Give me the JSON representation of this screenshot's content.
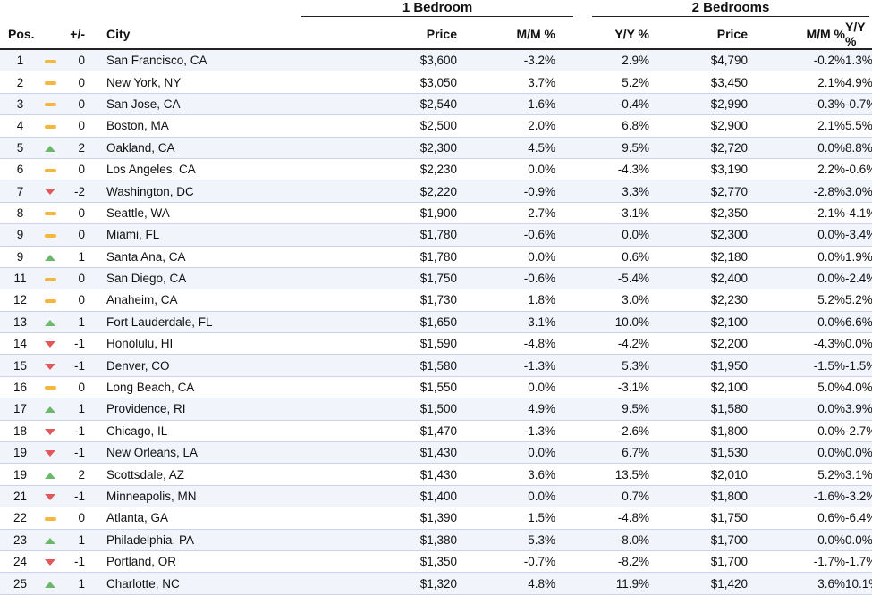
{
  "groups": {
    "one_bedroom": "1 Bedroom",
    "two_bedrooms": "2 Bedrooms"
  },
  "headers": {
    "pos": "Pos.",
    "change": "+/-",
    "city": "City",
    "price1": "Price",
    "mm1": "M/M %",
    "yy1": "Y/Y %",
    "price2": "Price",
    "mm2": "M/M %",
    "yy2": "Y/Y %"
  },
  "colors": {
    "up": "#6cb86a",
    "down": "#e0585a",
    "same": "#f4b63c"
  },
  "rows": [
    {
      "pos": "1",
      "trend": "same",
      "chg": "0",
      "city": "San Francisco, CA",
      "p1": "$3,600",
      "mm1": "-3.2%",
      "yy1": "2.9%",
      "p2": "$4,790",
      "mm2": "-0.2%",
      "yy2": "1.3%"
    },
    {
      "pos": "2",
      "trend": "same",
      "chg": "0",
      "city": "New York, NY",
      "p1": "$3,050",
      "mm1": "3.7%",
      "yy1": "5.2%",
      "p2": "$3,450",
      "mm2": "2.1%",
      "yy2": "4.9%"
    },
    {
      "pos": "3",
      "trend": "same",
      "chg": "0",
      "city": "San Jose, CA",
      "p1": "$2,540",
      "mm1": "1.6%",
      "yy1": "-0.4%",
      "p2": "$2,990",
      "mm2": "-0.3%",
      "yy2": "-0.7%"
    },
    {
      "pos": "4",
      "trend": "same",
      "chg": "0",
      "city": "Boston, MA",
      "p1": "$2,500",
      "mm1": "2.0%",
      "yy1": "6.8%",
      "p2": "$2,900",
      "mm2": "2.1%",
      "yy2": "5.5%"
    },
    {
      "pos": "5",
      "trend": "up",
      "chg": "2",
      "city": "Oakland, CA",
      "p1": "$2,300",
      "mm1": "4.5%",
      "yy1": "9.5%",
      "p2": "$2,720",
      "mm2": "0.0%",
      "yy2": "8.8%"
    },
    {
      "pos": "6",
      "trend": "same",
      "chg": "0",
      "city": "Los Angeles, CA",
      "p1": "$2,230",
      "mm1": "0.0%",
      "yy1": "-4.3%",
      "p2": "$3,190",
      "mm2": "2.2%",
      "yy2": "-0.6%"
    },
    {
      "pos": "7",
      "trend": "down",
      "chg": "-2",
      "city": "Washington, DC",
      "p1": "$2,220",
      "mm1": "-0.9%",
      "yy1": "3.3%",
      "p2": "$2,770",
      "mm2": "-2.8%",
      "yy2": "3.0%"
    },
    {
      "pos": "8",
      "trend": "same",
      "chg": "0",
      "city": "Seattle, WA",
      "p1": "$1,900",
      "mm1": "2.7%",
      "yy1": "-3.1%",
      "p2": "$2,350",
      "mm2": "-2.1%",
      "yy2": "-4.1%"
    },
    {
      "pos": "9",
      "trend": "same",
      "chg": "0",
      "city": "Miami, FL",
      "p1": "$1,780",
      "mm1": "-0.6%",
      "yy1": "0.0%",
      "p2": "$2,300",
      "mm2": "0.0%",
      "yy2": "-3.4%"
    },
    {
      "pos": "9",
      "trend": "up",
      "chg": "1",
      "city": "Santa Ana, CA",
      "p1": "$1,780",
      "mm1": "0.0%",
      "yy1": "0.6%",
      "p2": "$2,180",
      "mm2": "0.0%",
      "yy2": "1.9%"
    },
    {
      "pos": "11",
      "trend": "same",
      "chg": "0",
      "city": "San Diego, CA",
      "p1": "$1,750",
      "mm1": "-0.6%",
      "yy1": "-5.4%",
      "p2": "$2,400",
      "mm2": "0.0%",
      "yy2": "-2.4%"
    },
    {
      "pos": "12",
      "trend": "same",
      "chg": "0",
      "city": "Anaheim, CA",
      "p1": "$1,730",
      "mm1": "1.8%",
      "yy1": "3.0%",
      "p2": "$2,230",
      "mm2": "5.2%",
      "yy2": "5.2%"
    },
    {
      "pos": "13",
      "trend": "up",
      "chg": "1",
      "city": "Fort Lauderdale, FL",
      "p1": "$1,650",
      "mm1": "3.1%",
      "yy1": "10.0%",
      "p2": "$2,100",
      "mm2": "0.0%",
      "yy2": "6.6%"
    },
    {
      "pos": "14",
      "trend": "down",
      "chg": "-1",
      "city": "Honolulu, HI",
      "p1": "$1,590",
      "mm1": "-4.8%",
      "yy1": "-4.2%",
      "p2": "$2,200",
      "mm2": "-4.3%",
      "yy2": "0.0%"
    },
    {
      "pos": "15",
      "trend": "down",
      "chg": "-1",
      "city": "Denver, CO",
      "p1": "$1,580",
      "mm1": "-1.3%",
      "yy1": "5.3%",
      "p2": "$1,950",
      "mm2": "-1.5%",
      "yy2": "-1.5%"
    },
    {
      "pos": "16",
      "trend": "same",
      "chg": "0",
      "city": "Long Beach, CA",
      "p1": "$1,550",
      "mm1": "0.0%",
      "yy1": "-3.1%",
      "p2": "$2,100",
      "mm2": "5.0%",
      "yy2": "4.0%"
    },
    {
      "pos": "17",
      "trend": "up",
      "chg": "1",
      "city": "Providence, RI",
      "p1": "$1,500",
      "mm1": "4.9%",
      "yy1": "9.5%",
      "p2": "$1,580",
      "mm2": "0.0%",
      "yy2": "3.9%"
    },
    {
      "pos": "18",
      "trend": "down",
      "chg": "-1",
      "city": "Chicago, IL",
      "p1": "$1,470",
      "mm1": "-1.3%",
      "yy1": "-2.6%",
      "p2": "$1,800",
      "mm2": "0.0%",
      "yy2": "-2.7%"
    },
    {
      "pos": "19",
      "trend": "down",
      "chg": "-1",
      "city": "New Orleans, LA",
      "p1": "$1,430",
      "mm1": "0.0%",
      "yy1": "6.7%",
      "p2": "$1,530",
      "mm2": "0.0%",
      "yy2": "0.0%"
    },
    {
      "pos": "19",
      "trend": "up",
      "chg": "2",
      "city": "Scottsdale, AZ",
      "p1": "$1,430",
      "mm1": "3.6%",
      "yy1": "13.5%",
      "p2": "$2,010",
      "mm2": "5.2%",
      "yy2": "3.1%"
    },
    {
      "pos": "21",
      "trend": "down",
      "chg": "-1",
      "city": "Minneapolis, MN",
      "p1": "$1,400",
      "mm1": "0.0%",
      "yy1": "0.7%",
      "p2": "$1,800",
      "mm2": "-1.6%",
      "yy2": "-3.2%"
    },
    {
      "pos": "22",
      "trend": "same",
      "chg": "0",
      "city": "Atlanta, GA",
      "p1": "$1,390",
      "mm1": "1.5%",
      "yy1": "-4.8%",
      "p2": "$1,750",
      "mm2": "0.6%",
      "yy2": "-6.4%"
    },
    {
      "pos": "23",
      "trend": "up",
      "chg": "1",
      "city": "Philadelphia, PA",
      "p1": "$1,380",
      "mm1": "5.3%",
      "yy1": "-8.0%",
      "p2": "$1,700",
      "mm2": "0.0%",
      "yy2": "0.0%"
    },
    {
      "pos": "24",
      "trend": "down",
      "chg": "-1",
      "city": "Portland, OR",
      "p1": "$1,350",
      "mm1": "-0.7%",
      "yy1": "-8.2%",
      "p2": "$1,700",
      "mm2": "-1.7%",
      "yy2": "-1.7%"
    },
    {
      "pos": "25",
      "trend": "up",
      "chg": "1",
      "city": "Charlotte, NC",
      "p1": "$1,320",
      "mm1": "4.8%",
      "yy1": "11.9%",
      "p2": "$1,420",
      "mm2": "3.6%",
      "yy2": "10.1%"
    }
  ]
}
